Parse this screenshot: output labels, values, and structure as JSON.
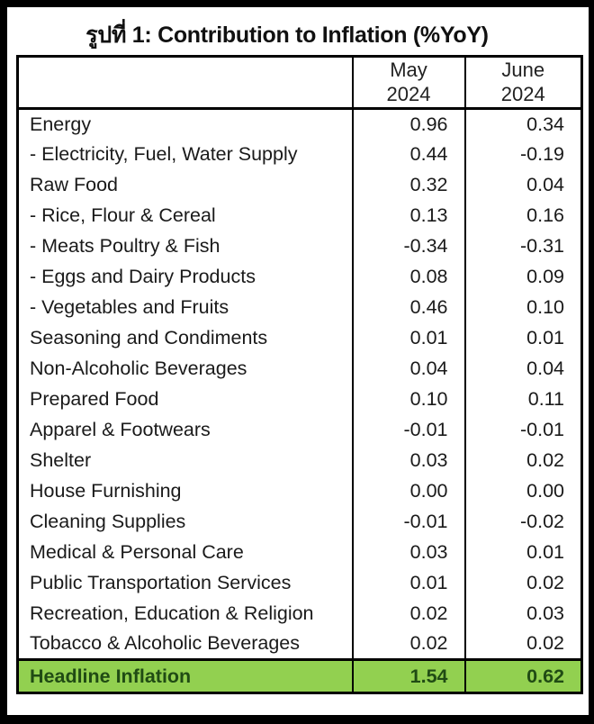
{
  "title": "รูปที่ 1: Contribution to Inflation (%YoY)",
  "table": {
    "columns": [
      {
        "month": "May",
        "year": "2024"
      },
      {
        "month": "June",
        "year": "2024"
      }
    ],
    "rows": [
      {
        "label": "Energy",
        "may": "0.96",
        "june": "0.34"
      },
      {
        "label": "- Electricity, Fuel, Water Supply",
        "may": "0.44",
        "june": "-0.19"
      },
      {
        "label": "Raw Food",
        "may": "0.32",
        "june": "0.04"
      },
      {
        "label": "- Rice, Flour & Cereal",
        "may": "0.13",
        "june": "0.16"
      },
      {
        "label": "- Meats Poultry & Fish",
        "may": "-0.34",
        "june": "-0.31"
      },
      {
        "label": "- Eggs and Dairy Products",
        "may": "0.08",
        "june": "0.09"
      },
      {
        "label": "- Vegetables and Fruits",
        "may": "0.46",
        "june": "0.10"
      },
      {
        "label": "Seasoning and Condiments",
        "may": "0.01",
        "june": "0.01"
      },
      {
        "label": "Non-Alcoholic Beverages",
        "may": "0.04",
        "june": "0.04"
      },
      {
        "label": "Prepared Food",
        "may": "0.10",
        "june": "0.11"
      },
      {
        "label": "Apparel & Footwears",
        "may": "-0.01",
        "june": "-0.01"
      },
      {
        "label": "Shelter",
        "may": "0.03",
        "june": "0.02"
      },
      {
        "label": "House Furnishing",
        "may": "0.00",
        "june": "0.00"
      },
      {
        "label": "Cleaning Supplies",
        "may": "-0.01",
        "june": "-0.02"
      },
      {
        "label": "Medical & Personal Care",
        "may": "0.03",
        "june": "0.01"
      },
      {
        "label": "Public Transportation Services",
        "may": "0.01",
        "june": "0.02"
      },
      {
        "label": "Recreation, Education & Religion",
        "may": "0.02",
        "june": "0.03"
      },
      {
        "label": "Tobacco & Alcoholic Beverages",
        "may": "0.02",
        "june": "0.02"
      }
    ],
    "footer": {
      "label": "Headline Inflation",
      "may": "1.54",
      "june": "0.62"
    }
  },
  "colors": {
    "highlight": "#92D050",
    "highlight_text": "#204b14",
    "border": "#000000"
  },
  "chart_data": {
    "type": "table",
    "title": "รูปที่ 1: Contribution to Inflation (%YoY)",
    "columns": [
      "",
      "May 2024",
      "June 2024"
    ],
    "rows": [
      [
        "Energy",
        0.96,
        0.34
      ],
      [
        "- Electricity, Fuel, Water Supply",
        0.44,
        -0.19
      ],
      [
        "Raw Food",
        0.32,
        0.04
      ],
      [
        "- Rice, Flour & Cereal",
        0.13,
        0.16
      ],
      [
        "- Meats Poultry & Fish",
        -0.34,
        -0.31
      ],
      [
        "- Eggs and Dairy Products",
        0.08,
        0.09
      ],
      [
        "- Vegetables and Fruits",
        0.46,
        0.1
      ],
      [
        "Seasoning and Condiments",
        0.01,
        0.01
      ],
      [
        "Non-Alcoholic Beverages",
        0.04,
        0.04
      ],
      [
        "Prepared Food",
        0.1,
        0.11
      ],
      [
        "Apparel & Footwears",
        -0.01,
        -0.01
      ],
      [
        "Shelter",
        0.03,
        0.02
      ],
      [
        "House Furnishing",
        0.0,
        0.0
      ],
      [
        "Cleaning Supplies",
        -0.01,
        -0.02
      ],
      [
        "Medical & Personal Care",
        0.03,
        0.01
      ],
      [
        "Public Transportation Services",
        0.01,
        0.02
      ],
      [
        "Recreation, Education & Religion",
        0.02,
        0.03
      ],
      [
        "Tobacco & Alcoholic Beverages",
        0.02,
        0.02
      ],
      [
        "Headline Inflation",
        1.54,
        0.62
      ]
    ],
    "highlight_row": "Headline Inflation",
    "units": "%YoY contribution"
  }
}
